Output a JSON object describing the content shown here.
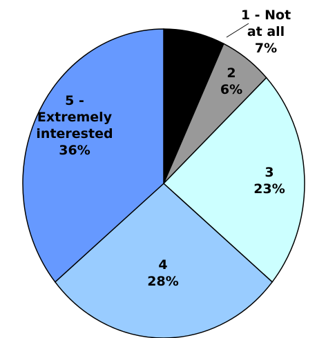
{
  "chart_data": {
    "type": "pie",
    "title": "",
    "start_angle_deg": 0,
    "direction": "clockwise",
    "slices": [
      {
        "category": "1 - Not at all",
        "value": 7,
        "label_lines": [
          "1 - Not",
          "at all",
          "7%"
        ],
        "color": "#000000"
      },
      {
        "category": "2",
        "value": 6,
        "label_lines": [
          "2",
          "6%"
        ],
        "color": "#999999"
      },
      {
        "category": "3",
        "value": 23,
        "label_lines": [
          "3",
          "23%"
        ],
        "color": "#ccffff"
      },
      {
        "category": "4",
        "value": 28,
        "label_lines": [
          "4",
          "28%"
        ],
        "color": "#99ccff"
      },
      {
        "category": "5 - Extremely interested",
        "value": 36,
        "label_lines": [
          "5 -",
          "Extremely",
          "interested",
          "36%"
        ],
        "color": "#6699ff"
      }
    ],
    "outline_color": "#000000",
    "legend": "none"
  }
}
